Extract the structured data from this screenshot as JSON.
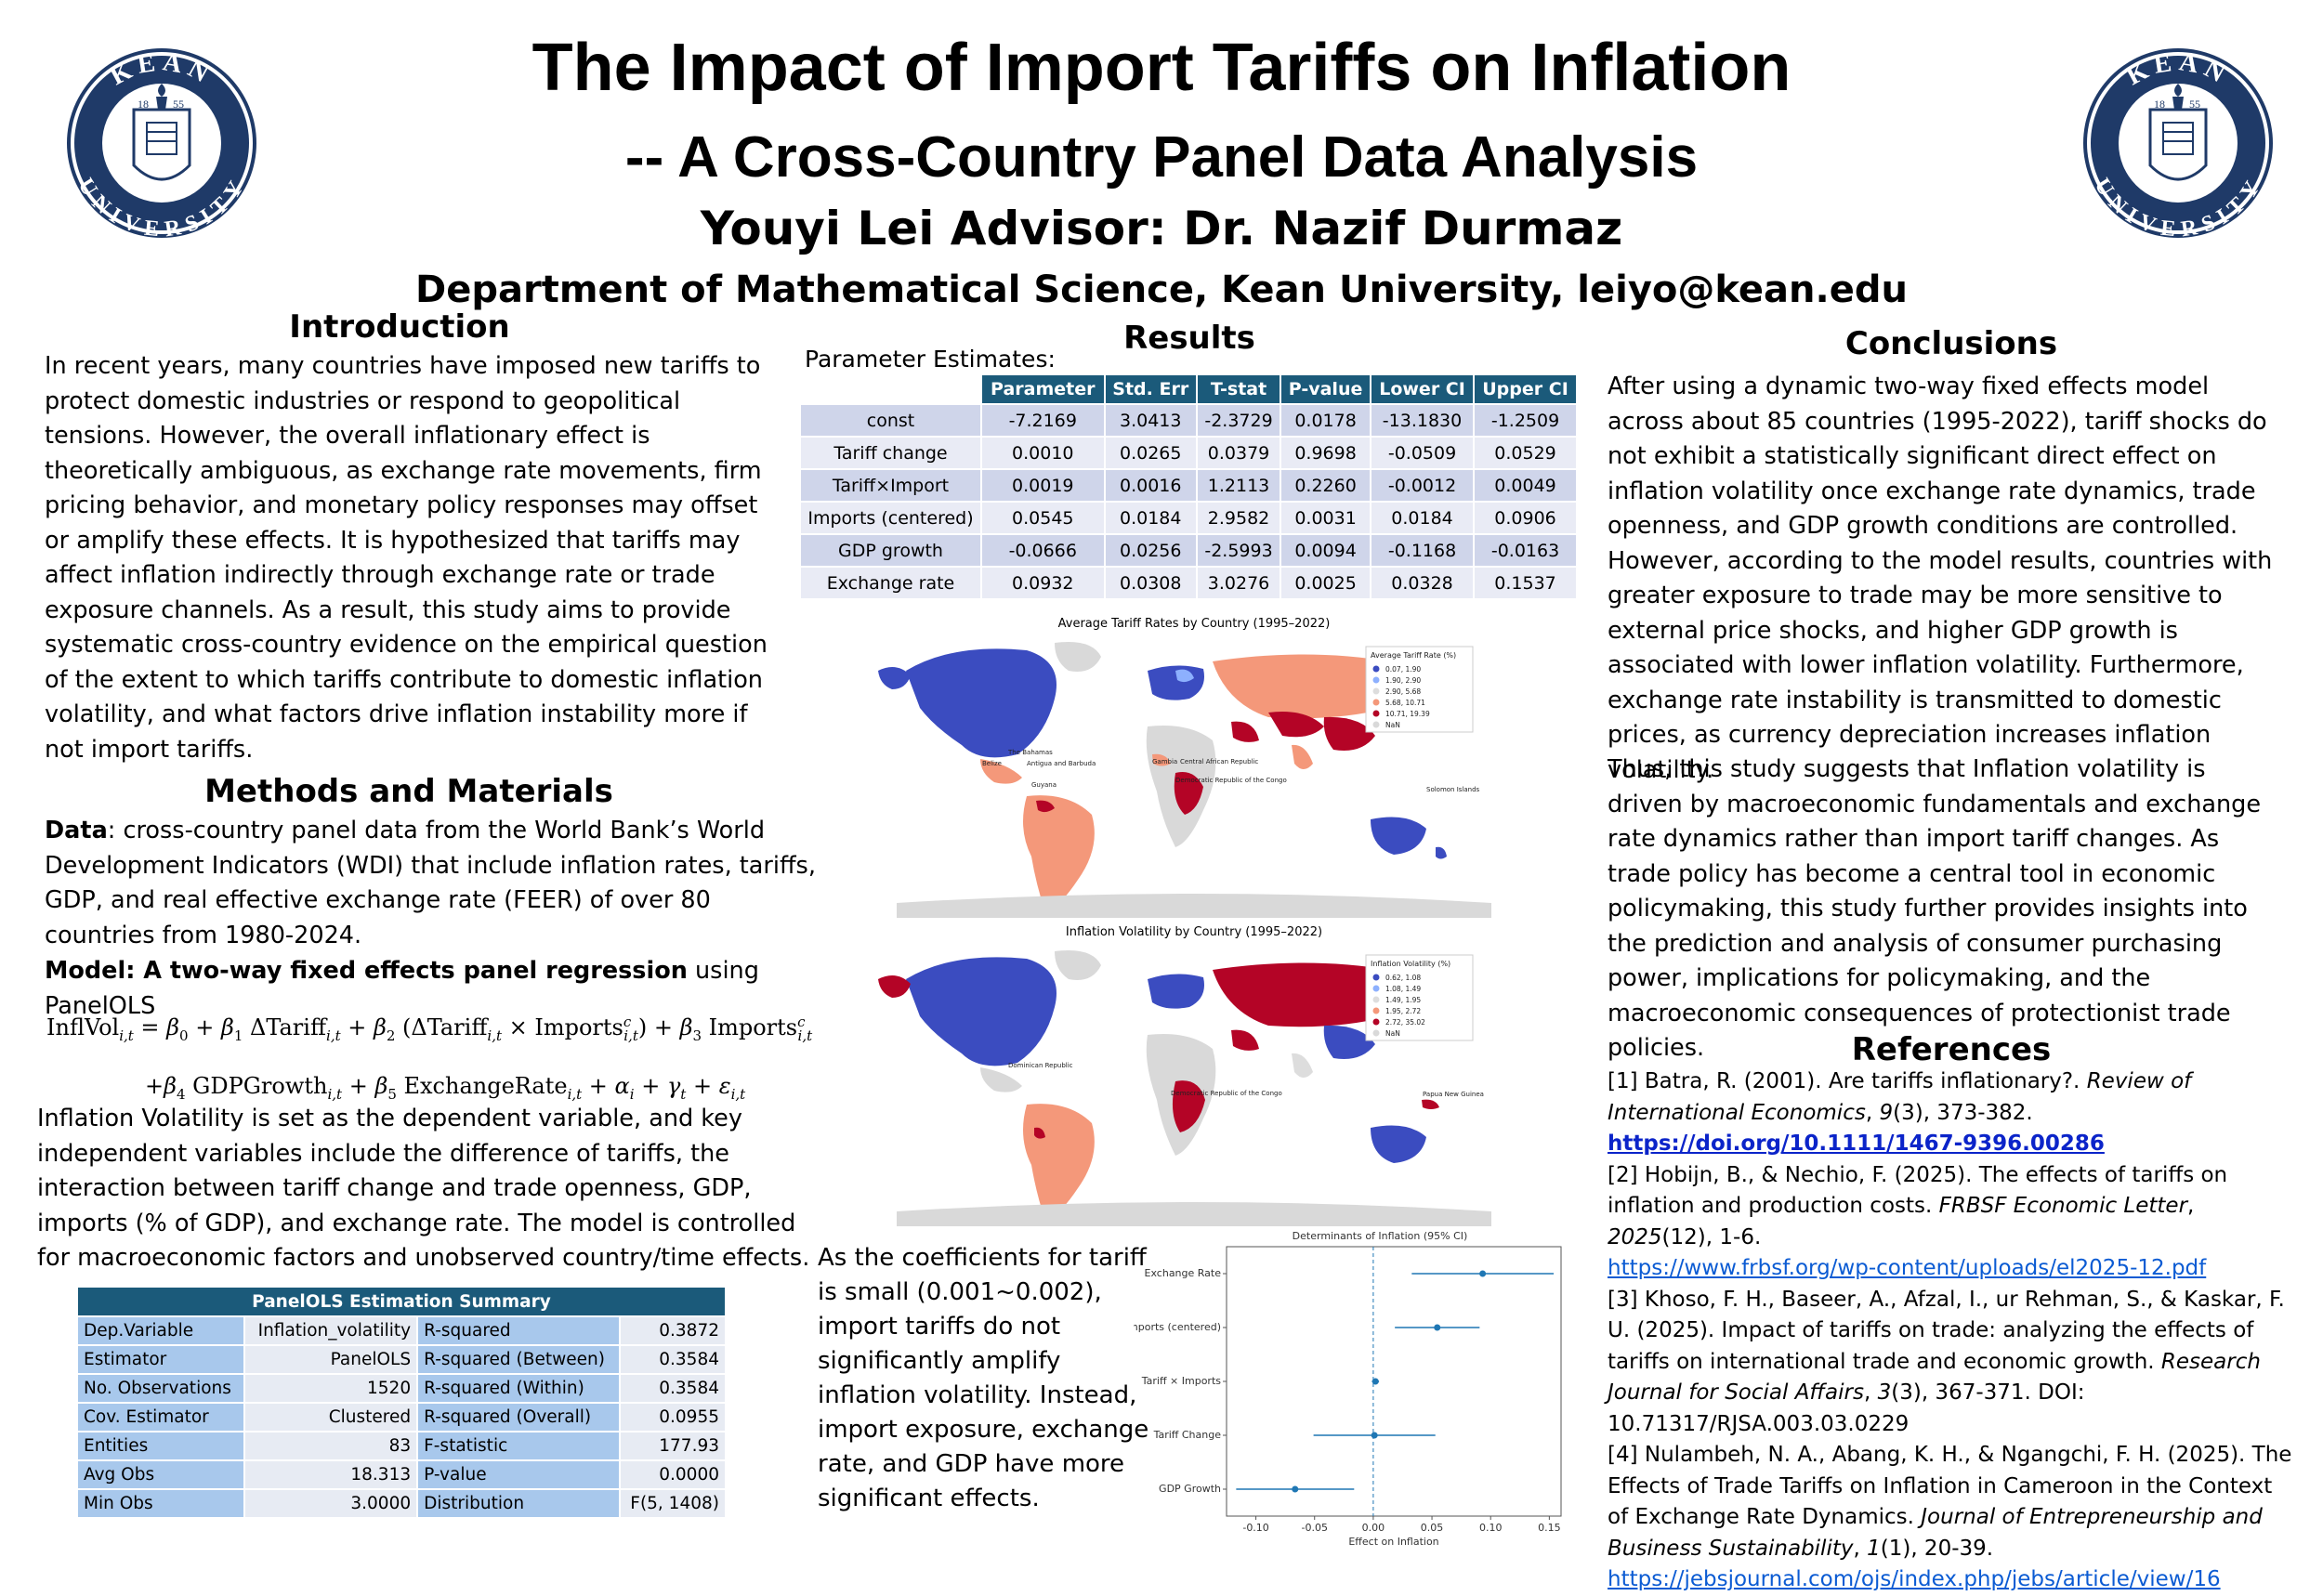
{
  "header": {
    "title_line1": "The Impact of Import Tariffs on Inflation",
    "title_line2": "-- A Cross-Country Panel Data Analysis",
    "authors": "Youyi Lei  Advisor: Dr. Nazif Durmaz",
    "department": "Department of Mathematical Science, Kean University, leiyo@kean.edu"
  },
  "logo": {
    "top_text": "KEAN",
    "bottom_text": "UNIVERSITY",
    "year_left": "18",
    "year_right": "55",
    "color": "#1f3a68"
  },
  "introduction": {
    "heading": "Introduction",
    "text": "In recent years, many countries have imposed new tariffs to protect domestic industries or respond to geopolitical tensions. However, the overall inflationary effect is theoretically ambiguous, as exchange rate movements, firm pricing behavior, and monetary policy responses may offset or amplify these effects. It is hypothesized that tariffs may affect inflation indirectly through exchange rate or trade exposure channels. As a result, this study aims to provide systematic cross-country evidence on the empirical question of the extent to which tariffs contribute to domestic inflation volatility, and what factors drive inflation instability more if not import tariffs."
  },
  "methods": {
    "heading": "Methods and Materials",
    "data_label": "Data",
    "data_text": ": cross-country panel data from the World Bank’s World Development Indicators (WDI) that include inflation rates, tariffs, GDP, and real effective exchange rate (FEER) of over 80 countries from 1980-2024.",
    "model_label": "Model",
    "model_bold": ": A two-way fixed effects panel regression",
    "model_tail": " using PanelOLS",
    "equation_line1": "InflVol_{i,t} = β_0 + β_1 ΔTariff_{i,t} + β_2 (ΔTariff_{i,t} × Imports^c_{i,t}) + β_3 Imports^c_{i,t}",
    "equation_line2": "+β_4 GDPGrowth_{i,t} + β_5 ExchangeRate_{i,t} + α_i + γ_t + ε_{i,t}",
    "description": "Inflation Volatility is set as the dependent variable, and key independent variables include the difference of tariffs, the interaction between tariff change and trade openness, GDP, imports (% of GDP), and exchange rate. The model is controlled for macroeconomic factors and unobserved country/time effects."
  },
  "panelols_summary": {
    "title": "PanelOLS Estimation Summary",
    "rows": [
      [
        "Dep.Variable",
        "Inflation_volatility",
        "R-squared",
        "0.3872"
      ],
      [
        "Estimator",
        "PanelOLS",
        "R-squared (Between)",
        "0.3584"
      ],
      [
        "No. Observations",
        "1520",
        "R-squared (Within)",
        "0.3584"
      ],
      [
        "Cov. Estimator",
        "Clustered",
        "R-squared (Overall)",
        "0.0955"
      ],
      [
        "Entities",
        "83",
        "F-statistic",
        "177.93"
      ],
      [
        "Avg Obs",
        "18.313",
        "P-value",
        "0.0000"
      ],
      [
        "Min Obs",
        "3.0000",
        "Distribution",
        "F(5, 1408)"
      ]
    ]
  },
  "results": {
    "heading": "Results",
    "param_caption": "Parameter Estimates:",
    "param_headers": [
      "",
      "Parameter",
      "Std. Err",
      "T-stat",
      "P-value",
      "Lower CI",
      "Upper CI"
    ],
    "param_rows": [
      [
        "const",
        "-7.2169",
        "3.0413",
        "-2.3729",
        "0.0178",
        "-13.1830",
        "-1.2509"
      ],
      [
        "Tariff change",
        "0.0010",
        "0.0265",
        "0.0379",
        "0.9698",
        "-0.0509",
        "0.0529"
      ],
      [
        "Tariff×Import",
        "0.0019",
        "0.0016",
        "1.2113",
        "0.2260",
        "-0.0012",
        "0.0049"
      ],
      [
        "Imports (centered)",
        "0.0545",
        "0.0184",
        "2.9582",
        "0.0031",
        "0.0184",
        "0.0906"
      ],
      [
        "GDP growth",
        "-0.0666",
        "0.0256",
        "-2.5993",
        "0.0094",
        "-0.1168",
        "-0.0163"
      ],
      [
        "Exchange rate",
        "0.0932",
        "0.0308",
        "3.0276",
        "0.0025",
        "0.0328",
        "0.1537"
      ]
    ],
    "map1": {
      "title": "Average Tariff Rates by Country (1995–2022)",
      "legend_title": "Average Tariff Rate (%)",
      "legend": [
        {
          "label": "0.07, 1.90",
          "color": "#3b4cc0"
        },
        {
          "label": "1.90, 2.90",
          "color": "#8db0fe"
        },
        {
          "label": "2.90, 5.68",
          "color": "#dddddd"
        },
        {
          "label": "5.68, 10.71",
          "color": "#f4987a"
        },
        {
          "label": "10.71, 19.39",
          "color": "#b40426"
        },
        {
          "label": "NaN",
          "color": "#d9d9d9"
        }
      ],
      "labels": [
        "The Bahamas",
        "Belize",
        "Antigua and Barbuda",
        "Guyana",
        "Gambia",
        "Central African Republic",
        "Democratic Republic of the Congo",
        "Solomon Islands"
      ]
    },
    "map2": {
      "title": "Inflation Volatility by Country (1995–2022)",
      "legend_title": "Inflation Volatility (%)",
      "legend": [
        {
          "label": "0.62, 1.08",
          "color": "#3b4cc0"
        },
        {
          "label": "1.08, 1.49",
          "color": "#8db0fe"
        },
        {
          "label": "1.49, 1.95",
          "color": "#dddddd"
        },
        {
          "label": "1.95, 2.72",
          "color": "#f4987a"
        },
        {
          "label": "2.72, 35.02",
          "color": "#b40426"
        },
        {
          "label": "NaN",
          "color": "#d9d9d9"
        }
      ],
      "labels": [
        "Dominican Republic",
        "Democratic Republic of the Congo",
        "Papua New Guinea"
      ]
    },
    "note": "As the coefficients for tariff is small (0.001~0.002), import tariffs do not significantly amplify inflation volatility. Instead, import exposure, exchange rate, and GDP have more significant effects."
  },
  "chart_data": {
    "type": "scatter",
    "title": "Determinants of Inflation (95% CI)",
    "xlabel": "Effect on Inflation",
    "ylabel": "",
    "categories": [
      "Exchange Rate",
      "Imports (centered)",
      "Tariff × Imports",
      "Tariff Change",
      "GDP Growth"
    ],
    "values": [
      0.0932,
      0.0545,
      0.0019,
      0.001,
      -0.0666
    ],
    "lower": [
      0.0328,
      0.0184,
      -0.0012,
      -0.0509,
      -0.1168
    ],
    "upper": [
      0.1537,
      0.0906,
      0.0049,
      0.0529,
      -0.0163
    ],
    "xlim": [
      -0.125,
      0.16
    ],
    "xticks": [
      "-0.10",
      "-0.05",
      "0.00",
      "0.05",
      "0.10",
      "0.15"
    ],
    "xtick_values": [
      -0.1,
      -0.05,
      0.0,
      0.05,
      0.1,
      0.15
    ],
    "reference_line": 0,
    "color": "#1f77b4"
  },
  "conclusions": {
    "heading": "Conclusions",
    "text": "After using a dynamic two-way fixed effects model across about 85 countries (1995-2022), tariff shocks do not exhibit a statistically significant direct effect on inflation volatility once exchange rate dynamics, trade openness, and GDP growth conditions are controlled.  However, according to the model results, countries with greater exposure to trade may be more sensitive to external price shocks, and higher GDP growth is associated with lower inflation volatility. Furthermore, exchange rate instability is transmitted to domestic prices, as currency depreciation increases inflation volatility.",
    "text2": "Thus, this study suggests that Inflation volatility is driven by macroeconomic fundamentals and exchange rate dynamics rather than import tariff changes. As trade policy has become a central tool in economic policymaking, this study further provides insights into the prediction and analysis of consumer purchasing power, implications for policymaking, and the macroeconomic consequences of protectionist trade policies."
  },
  "references": {
    "heading": "References",
    "items": [
      {
        "pre": "[1] Batra, R. (2001). Are tariffs inflationary?. ",
        "journal": "Review of International Economics",
        "mid": ", ",
        "vol": "9",
        "post": "(3), 373-382.",
        "link": "https://doi.org/10.1111/1467-9396.00286"
      },
      {
        "pre": "[2] Hobijn, B., & Nechio, F. (2025). The effects of tariffs on inflation and production costs. ",
        "journal": "FRBSF Economic Letter",
        "mid": ", ",
        "vol": "2025",
        "post": "(12), 1-6.",
        "link": "https://www.frbsf.org/wp-content/uploads/el2025-12.pdf"
      },
      {
        "pre": "[3] Khoso, F. H., Baseer, A., Afzal, I., ur Rehman, S., & Kaskar, F. U. (2025). Impact of tariffs on trade: analyzing the effects of tariffs on international trade and economic growth. ",
        "journal": "Research Journal for Social Affairs",
        "mid": ", ",
        "vol": "3",
        "post": "(3), 367-371. DOI: 10.71317/RJSA.003.03.0229",
        "link": ""
      },
      {
        "pre": "[4] Nulambeh, N. A., Abang, K. H., & Ngangchi, F. H. (2025). The Effects of Trade Tariffs on Inflation in Cameroon in the Context of Exchange Rate Dynamics. ",
        "journal": "Journal of Entrepreneurship and Business Sustainability",
        "mid": ", ",
        "vol": "1",
        "post": "(1), 20-39.",
        "link": "https://jebsjournal.com/ojs/index.php/jebs/article/view/16"
      }
    ]
  }
}
